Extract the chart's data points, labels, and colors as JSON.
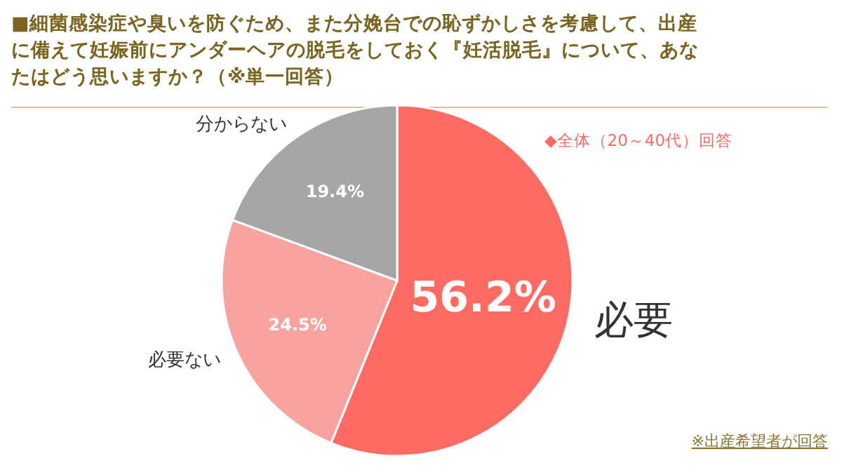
{
  "chart_data": {
    "type": "pie",
    "title": "■細菌感染症や臭いを防ぐため、また分娩台での恥ずかしさを考慮して、出産に備えて妊娠前にアンダーヘアの脱毛をしておく『妊活脱毛』について、あなたはどう思いますか？（※単一回答）",
    "subtitle": "◆全体（20～40代）回答",
    "categories": [
      "必要",
      "必要ない",
      "分からない"
    ],
    "values": [
      56.2,
      24.5,
      19.4
    ],
    "colors": [
      "#ff6b63",
      "#f9a3a0",
      "#a6a6a6"
    ],
    "value_labels": [
      "56.2%",
      "24.5%",
      "19.4%"
    ],
    "annotations": [
      "※出産希望者が回答"
    ]
  }
}
